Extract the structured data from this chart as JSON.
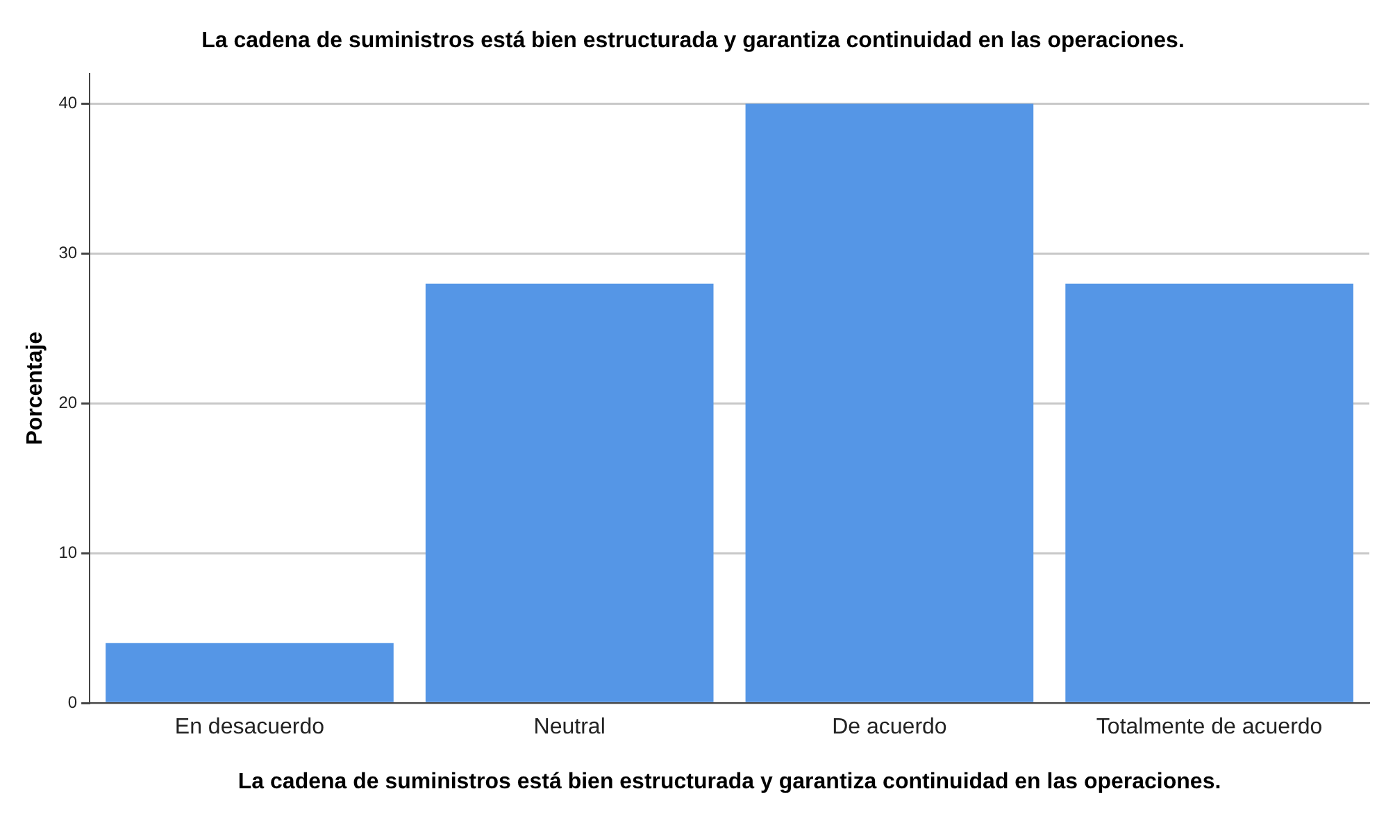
{
  "chart_data": {
    "type": "bar",
    "title": "La cadena de suministros está bien estructurada y garantiza continuidad en las operaciones.",
    "xlabel": "La cadena de suministros está bien estructurada y garantiza continuidad en las operaciones.",
    "ylabel": "Porcentaje",
    "categories": [
      "En desacuerdo",
      "Neutral",
      "De acuerdo",
      "Totalmente de acuerdo"
    ],
    "values": [
      4,
      28,
      40,
      28
    ],
    "color": "#5596e6",
    "ylim": [
      0,
      42
    ],
    "yticks": [
      0,
      10,
      20,
      30,
      40
    ],
    "grid": "y",
    "legend": false
  }
}
